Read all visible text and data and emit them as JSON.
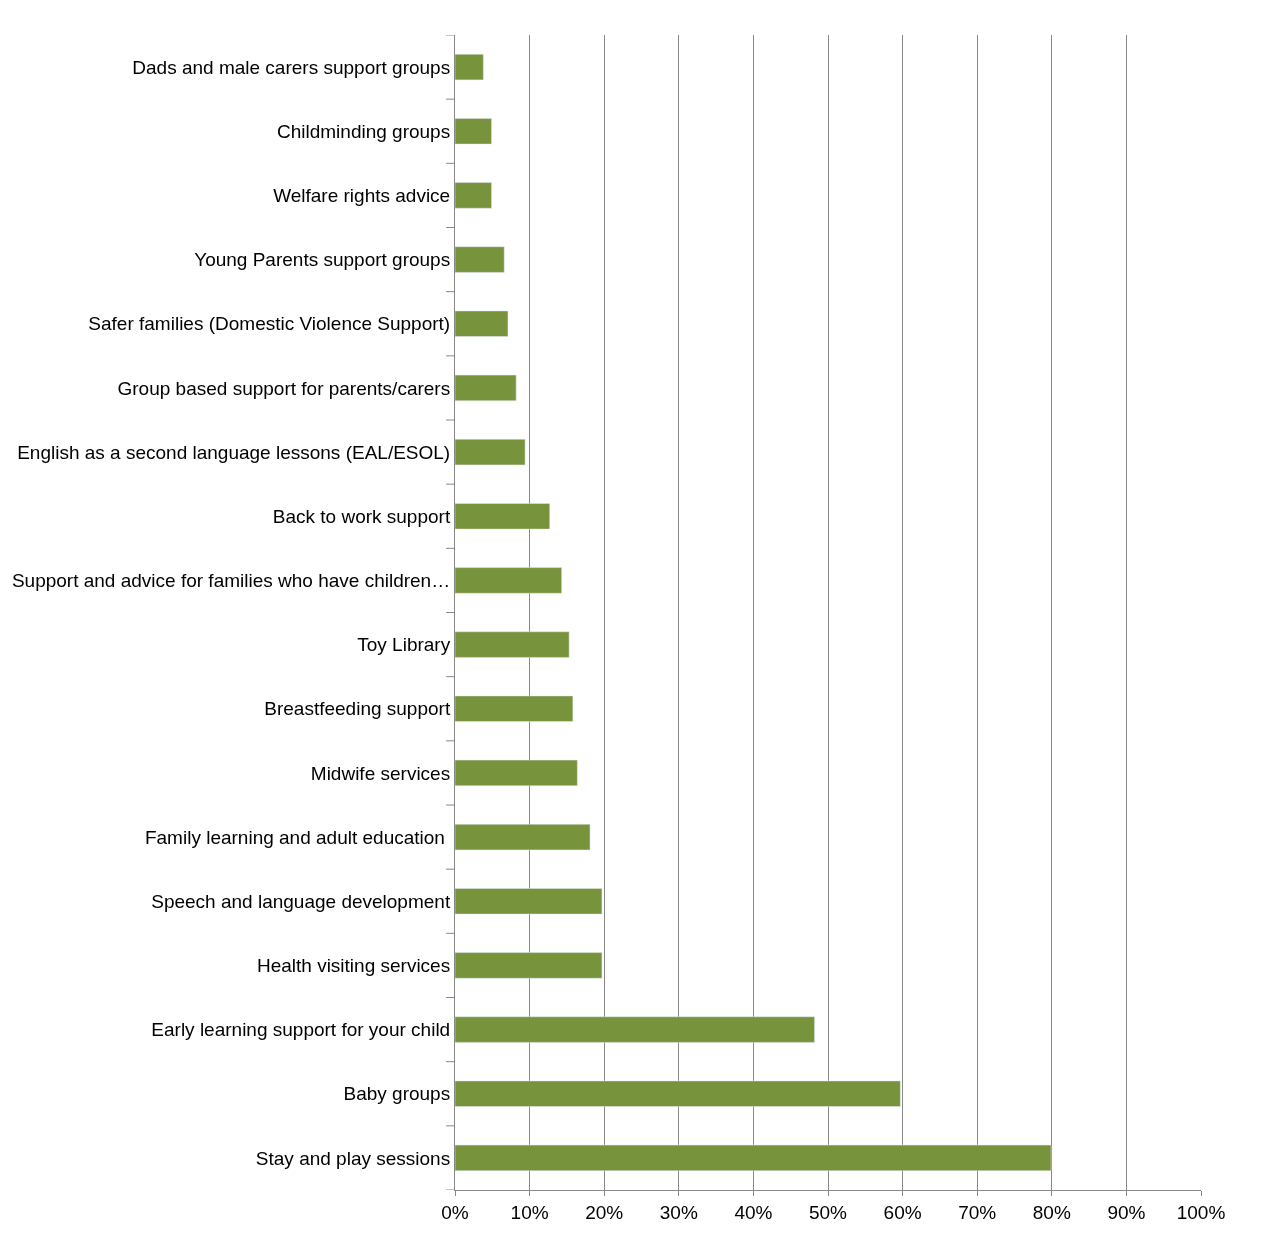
{
  "chart_data": {
    "type": "bar",
    "orientation": "horizontal",
    "categories": [
      "Dads and male carers support groups",
      "Childminding groups",
      "Welfare rights advice",
      "Young Parents support groups",
      "Safer families (Domestic Violence Support)",
      "Group based support for parents/carers",
      "English as a second language lessons (EAL/ESOL)",
      "Back to work support",
      "Support and advice for families who have children…",
      "Toy Library",
      "Breastfeeding support",
      "Midwife services",
      "Family learning and adult education ",
      "Speech and language development",
      "Health visiting services",
      "Early learning support for your child",
      "Baby groups",
      "Stay and play sessions"
    ],
    "values": [
      0.038,
      0.049,
      0.049,
      0.066,
      0.071,
      0.082,
      0.094,
      0.127,
      0.143,
      0.153,
      0.158,
      0.164,
      0.181,
      0.197,
      0.197,
      0.482,
      0.597,
      0.799
    ],
    "color": "#77933c",
    "xlim": [
      0,
      1
    ],
    "xticks": [
      {
        "value": 0,
        "label": "0%"
      },
      {
        "value": 0.1,
        "label": "10%"
      },
      {
        "value": 0.2,
        "label": "20%"
      },
      {
        "value": 0.3,
        "label": "30%"
      },
      {
        "value": 0.4,
        "label": "40%"
      },
      {
        "value": 0.5,
        "label": "50%"
      },
      {
        "value": 0.6,
        "label": "60%"
      },
      {
        "value": 0.7,
        "label": "70%"
      },
      {
        "value": 0.8,
        "label": "80%"
      },
      {
        "value": 0.9,
        "label": "90%"
      },
      {
        "value": 1,
        "label": "100%"
      }
    ],
    "grid": "x"
  }
}
